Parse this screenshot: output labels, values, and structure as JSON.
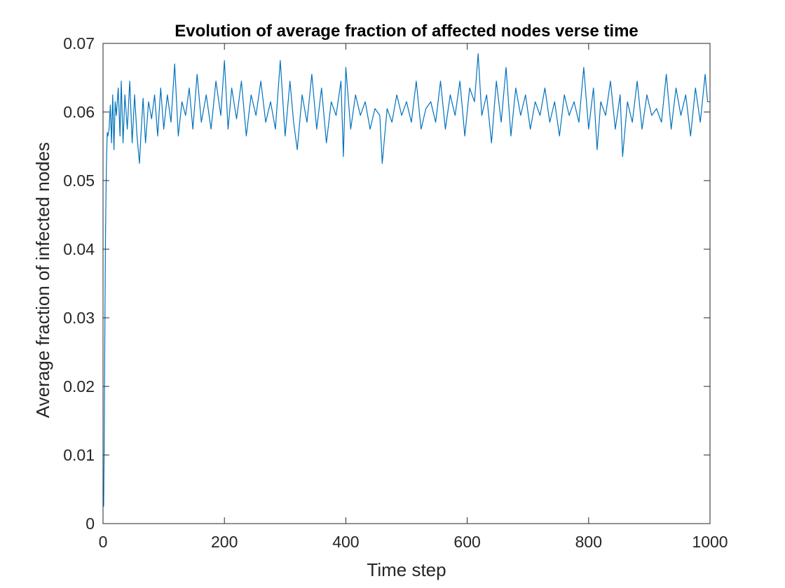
{
  "chart_data": {
    "type": "line",
    "title": "Evolution of average fraction of affected nodes verse time",
    "xlabel": "Time step",
    "ylabel": "Average fraction of infected nodes",
    "xlim": [
      0,
      1000
    ],
    "ylim": [
      0,
      0.07
    ],
    "xticks": [
      "0",
      "200",
      "400",
      "600",
      "800",
      "1000"
    ],
    "yticks": [
      "0",
      "0.01",
      "0.02",
      "0.03",
      "0.04",
      "0.05",
      "0.06",
      "0.07"
    ],
    "grid": false,
    "legend": "none",
    "series": [
      {
        "color": "#0072BD",
        "x": [
          1,
          2,
          3,
          4,
          5,
          6,
          7,
          8,
          10,
          12,
          14,
          16,
          18,
          20,
          22,
          25,
          28,
          30,
          33,
          36,
          40,
          44,
          48,
          52,
          56,
          60,
          63,
          66,
          70,
          75,
          80,
          85,
          90,
          95,
          100,
          106,
          112,
          118,
          124,
          130,
          136,
          142,
          148,
          155,
          162,
          170,
          178,
          186,
          194,
          200,
          206,
          212,
          220,
          228,
          236,
          244,
          252,
          260,
          268,
          276,
          284,
          292,
          300,
          308,
          314,
          320,
          328,
          336,
          344,
          352,
          360,
          368,
          376,
          384,
          392,
          396,
          400,
          408,
          416,
          424,
          432,
          440,
          448,
          456,
          460,
          468,
          476,
          484,
          492,
          500,
          508,
          516,
          524,
          532,
          540,
          548,
          556,
          564,
          572,
          580,
          588,
          596,
          604,
          612,
          618,
          624,
          632,
          640,
          648,
          656,
          664,
          672,
          680,
          688,
          696,
          704,
          712,
          720,
          728,
          736,
          744,
          752,
          760,
          768,
          776,
          784,
          792,
          800,
          808,
          814,
          820,
          828,
          836,
          844,
          852,
          856,
          864,
          872,
          880,
          888,
          896,
          904,
          912,
          920,
          928,
          936,
          944,
          952,
          960,
          968,
          976,
          984,
          992,
          996,
          1000
        ],
        "y": [
          0.0025,
          0.012,
          0.028,
          0.041,
          0.049,
          0.054,
          0.057,
          0.0565,
          0.0575,
          0.061,
          0.0555,
          0.0625,
          0.0545,
          0.0615,
          0.0595,
          0.0635,
          0.0565,
          0.0645,
          0.0555,
          0.0625,
          0.0575,
          0.0645,
          0.0555,
          0.0625,
          0.0565,
          0.0525,
          0.0575,
          0.062,
          0.0555,
          0.0615,
          0.059,
          0.0625,
          0.0565,
          0.0635,
          0.0575,
          0.0625,
          0.0585,
          0.067,
          0.0565,
          0.0615,
          0.0595,
          0.0635,
          0.0575,
          0.0655,
          0.0585,
          0.0625,
          0.0575,
          0.0645,
          0.0595,
          0.0675,
          0.0575,
          0.0635,
          0.059,
          0.0645,
          0.0565,
          0.0625,
          0.0595,
          0.0645,
          0.0585,
          0.0615,
          0.0575,
          0.0675,
          0.0565,
          0.0645,
          0.0585,
          0.0545,
          0.0625,
          0.0585,
          0.0655,
          0.0575,
          0.0635,
          0.0555,
          0.0615,
          0.0595,
          0.0645,
          0.0535,
          0.0665,
          0.0575,
          0.0625,
          0.0595,
          0.0615,
          0.0575,
          0.0605,
          0.0595,
          0.0525,
          0.0605,
          0.0585,
          0.0625,
          0.0595,
          0.0615,
          0.0585,
          0.0645,
          0.0575,
          0.0605,
          0.0615,
          0.0585,
          0.0645,
          0.0575,
          0.0625,
          0.0595,
          0.0645,
          0.0565,
          0.0635,
          0.0615,
          0.0685,
          0.0595,
          0.0625,
          0.0555,
          0.0645,
          0.0585,
          0.0665,
          0.0565,
          0.0635,
          0.0595,
          0.0625,
          0.0575,
          0.0615,
          0.0595,
          0.0635,
          0.0585,
          0.0615,
          0.0565,
          0.0625,
          0.0595,
          0.0615,
          0.0585,
          0.0665,
          0.0575,
          0.0635,
          0.0545,
          0.0615,
          0.0595,
          0.0645,
          0.0575,
          0.0625,
          0.0535,
          0.0615,
          0.0585,
          0.0645,
          0.0575,
          0.0625,
          0.0595,
          0.0605,
          0.0585,
          0.0655,
          0.0575,
          0.0635,
          0.0595,
          0.0625,
          0.0565,
          0.0635,
          0.0585,
          0.0655,
          0.0615,
          0.0615
        ]
      }
    ]
  }
}
